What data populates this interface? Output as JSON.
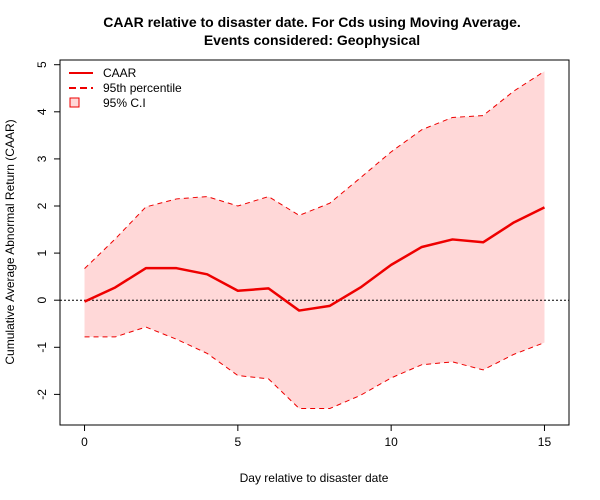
{
  "chart_data": {
    "type": "line",
    "title": "CAAR relative to disaster date. For Cds using Moving Average.",
    "subtitle": "Events considered: Geophysical",
    "xlabel": "Day relative to disaster date",
    "ylabel": "Cumulative Average Abnormal Return (CAAR)",
    "xlim": [
      -0.8,
      15.8
    ],
    "ylim": [
      -2.65,
      5.1
    ],
    "xticks": [
      "0",
      "5",
      "10",
      "15"
    ],
    "yticks": [
      "-2",
      "-1",
      "0",
      "1",
      "2",
      "3",
      "4",
      "5"
    ],
    "x": [
      0,
      1,
      2,
      3,
      4,
      5,
      6,
      7,
      8,
      9,
      10,
      11,
      12,
      13,
      14,
      15
    ],
    "series": [
      {
        "name": "CAAR",
        "values": [
          -0.03,
          0.27,
          0.68,
          0.68,
          0.55,
          0.2,
          0.25,
          -0.22,
          -0.12,
          0.27,
          0.75,
          1.13,
          1.29,
          1.23,
          1.65,
          1.97
        ]
      },
      {
        "name": "95th percentile",
        "role": "upper",
        "values": [
          0.67,
          1.3,
          1.98,
          2.15,
          2.2,
          2.0,
          2.2,
          1.8,
          2.06,
          2.6,
          3.15,
          3.62,
          3.88,
          3.92,
          4.44,
          4.86
        ]
      },
      {
        "name": "95th percentile",
        "role": "lower",
        "values": [
          -0.78,
          -0.78,
          -0.57,
          -0.83,
          -1.13,
          -1.6,
          -1.67,
          -2.3,
          -2.3,
          -2.02,
          -1.65,
          -1.37,
          -1.31,
          -1.48,
          -1.15,
          -0.9
        ]
      }
    ],
    "reference_line": 0,
    "legend": {
      "position": "top-left",
      "entries": [
        "CAAR",
        "95th percentile",
        "95% C.I"
      ]
    },
    "colors": {
      "line": "#ee0000",
      "band_fill": "#ffd8d8",
      "band_edge": "#ee0000",
      "reference": "#000000"
    },
    "grid": false
  }
}
